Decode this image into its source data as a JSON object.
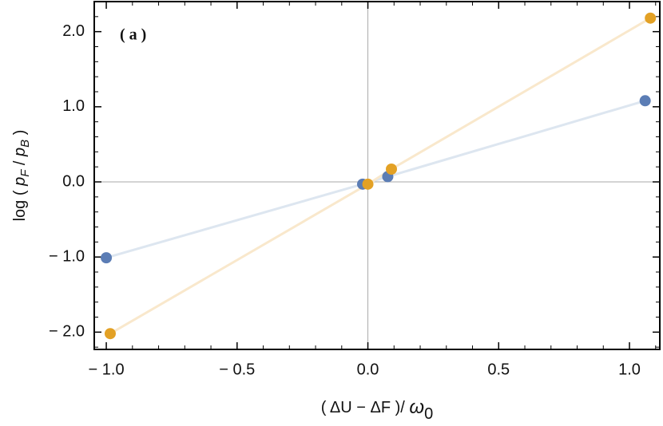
{
  "chart_data": {
    "type": "scatter",
    "annotation": "( a )",
    "x_label": [
      "( ΔU − ΔF )/ ",
      "ω",
      "0"
    ],
    "y_label": [
      "log ( ",
      "p",
      "F",
      " / ",
      "p",
      "B",
      " )"
    ],
    "series": [
      {
        "color": "#5b7db5",
        "line_color": "#dde6f0",
        "x": [
          -1.0,
          -0.02,
          0.076,
          1.06
        ],
        "values": [
          -1.01,
          -0.03,
          0.07,
          1.08
        ]
      },
      {
        "color": "#e3a125",
        "line_color": "#f9e8cc",
        "x": [
          -0.985,
          0.0,
          0.09,
          1.08
        ],
        "values": [
          -2.02,
          -0.03,
          0.17,
          2.18
        ]
      }
    ],
    "xlim": [
      -1.046,
      1.116
    ],
    "ylim": [
      -2.23,
      2.4
    ],
    "xticks": [
      {
        "value": -1.0,
        "label": "− 1.0"
      },
      {
        "value": -0.5,
        "label": "− 0.5"
      },
      {
        "value": 0.0,
        "label": "0.0"
      },
      {
        "value": 0.5,
        "label": "0.5"
      },
      {
        "value": 1.0,
        "label": "1.0"
      }
    ],
    "yticks": [
      {
        "value": -2.0,
        "label": "− 2.0"
      },
      {
        "value": -1.0,
        "label": "− 1.0"
      },
      {
        "value": 0.0,
        "label": "0.0"
      },
      {
        "value": 1.0,
        "label": "1.0"
      },
      {
        "value": 2.0,
        "label": "2.0"
      }
    ],
    "xminorticks": [
      -0.9,
      -0.8,
      -0.7,
      -0.6,
      -0.4,
      -0.3,
      -0.2,
      -0.1,
      0.1,
      0.2,
      0.3,
      0.4,
      0.6,
      0.7,
      0.8,
      0.9,
      1.1
    ],
    "yminorticks": [
      -2.2,
      -1.8,
      -1.6,
      -1.4,
      -1.2,
      -0.8,
      -0.6,
      -0.4,
      -0.2,
      0.2,
      0.4,
      0.6,
      0.8,
      1.2,
      1.4,
      1.6,
      1.8,
      2.2
    ],
    "zero_lines": true
  }
}
